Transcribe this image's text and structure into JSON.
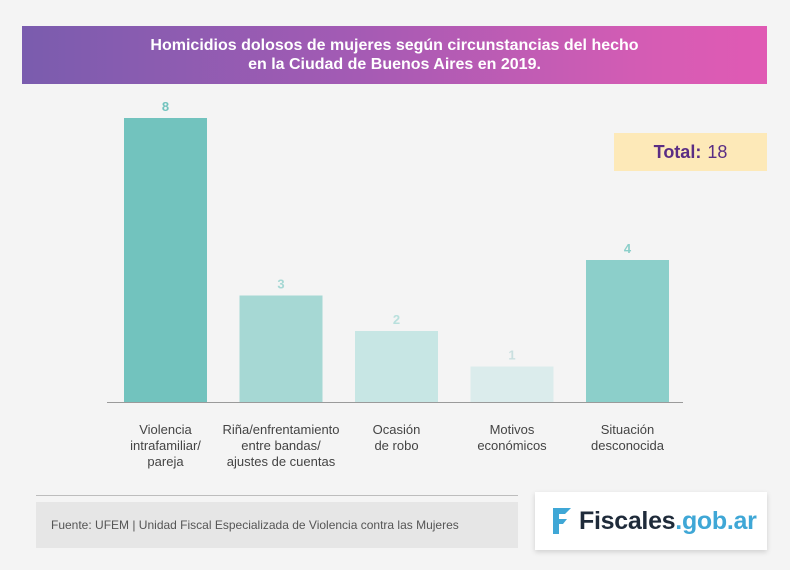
{
  "title": {
    "line1": "Homicidios dolosos de mujeres según circunstancias del hecho",
    "line2": "en la Ciudad de Buenos Aires en 2019."
  },
  "total": {
    "label": "Total:",
    "value": "18"
  },
  "chart_data": {
    "type": "bar",
    "title": "Homicidios dolosos de mujeres según circunstancias del hecho en la Ciudad de Buenos Aires en 2019.",
    "categories": [
      [
        "Violencia",
        "intrafamiliar/",
        "pareja"
      ],
      [
        "Riña/enfrentamiento",
        "entre bandas/",
        "ajustes de cuentas"
      ],
      [
        "Ocasión",
        "de robo"
      ],
      [
        "Motivos",
        "económicos"
      ],
      [
        "Situación",
        "desconocida"
      ]
    ],
    "values": [
      8,
      3,
      2,
      1,
      4
    ],
    "value_labels": [
      "8",
      "3",
      "2",
      "1",
      "4"
    ],
    "bar_colors": [
      "#72c3be",
      "#a6d8d4",
      "#c7e6e4",
      "#dbecec",
      "#8ccfca"
    ],
    "label_colors": [
      "#72c3be",
      "#a6d8d4",
      "#b9e0dd",
      "#c9dfdf",
      "#8ccfca"
    ],
    "ylim": [
      0,
      8
    ],
    "xlabel": "",
    "ylabel": ""
  },
  "footer": {
    "source": "Fuente: UFEM | Unidad Fiscal Especializada de Violencia contra las Mujeres",
    "logo_main": "Fiscales",
    "logo_suffix": ".gob.ar"
  }
}
